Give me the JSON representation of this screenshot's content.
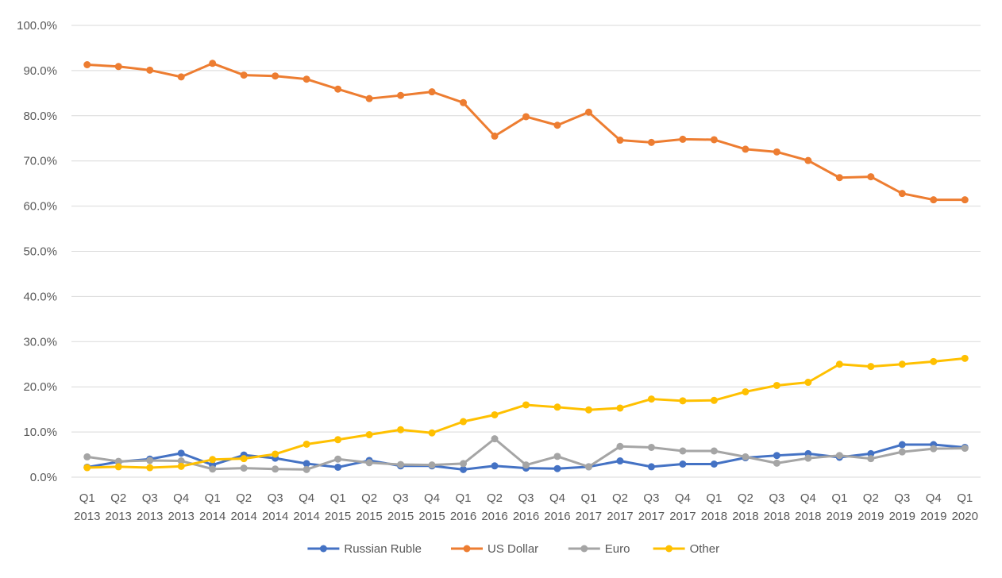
{
  "chart_data": {
    "type": "line",
    "title": "",
    "xlabel": "",
    "ylabel": "",
    "ylim": [
      0,
      100
    ],
    "y_ticks": [
      "0.0%",
      "10.0%",
      "20.0%",
      "30.0%",
      "40.0%",
      "50.0%",
      "60.0%",
      "70.0%",
      "80.0%",
      "90.0%",
      "100.0%"
    ],
    "categories": [
      [
        "Q1",
        "2013"
      ],
      [
        "Q2",
        "2013"
      ],
      [
        "Q3",
        "2013"
      ],
      [
        "Q4",
        "2013"
      ],
      [
        "Q1",
        "2014"
      ],
      [
        "Q2",
        "2014"
      ],
      [
        "Q3",
        "2014"
      ],
      [
        "Q4",
        "2014"
      ],
      [
        "Q1",
        "2015"
      ],
      [
        "Q2",
        "2015"
      ],
      [
        "Q3",
        "2015"
      ],
      [
        "Q4",
        "2015"
      ],
      [
        "Q1",
        "2016"
      ],
      [
        "Q2",
        "2016"
      ],
      [
        "Q3",
        "2016"
      ],
      [
        "Q4",
        "2016"
      ],
      [
        "Q1",
        "2017"
      ],
      [
        "Q2",
        "2017"
      ],
      [
        "Q3",
        "2017"
      ],
      [
        "Q4",
        "2017"
      ],
      [
        "Q1",
        "2018"
      ],
      [
        "Q2",
        "2018"
      ],
      [
        "Q3",
        "2018"
      ],
      [
        "Q4",
        "2018"
      ],
      [
        "Q1",
        "2019"
      ],
      [
        "Q2",
        "2019"
      ],
      [
        "Q3",
        "2019"
      ],
      [
        "Q4",
        "2019"
      ],
      [
        "Q1",
        "2020"
      ]
    ],
    "legend_position": "bottom",
    "gridlines": true,
    "series": [
      {
        "name": "Russian Ruble",
        "color": "#4472C4",
        "values": [
          2.2,
          3.4,
          4.0,
          5.3,
          2.7,
          4.9,
          4.2,
          3.0,
          2.2,
          3.7,
          2.5,
          2.5,
          1.7,
          2.5,
          2.0,
          1.9,
          2.3,
          3.6,
          2.3,
          2.9,
          2.9,
          4.3,
          4.8,
          5.2,
          4.4,
          5.2,
          7.2,
          7.2,
          6.6
        ]
      },
      {
        "name": "US Dollar",
        "color": "#ED7D31",
        "values": [
          91.3,
          90.9,
          90.1,
          88.6,
          91.6,
          89.0,
          88.8,
          88.1,
          85.9,
          83.8,
          84.5,
          85.3,
          82.9,
          75.5,
          79.8,
          77.9,
          80.8,
          74.6,
          74.1,
          74.8,
          74.7,
          72.6,
          72.0,
          70.1,
          66.3,
          66.5,
          62.8,
          61.4,
          61.4
        ]
      },
      {
        "name": "Euro",
        "color": "#A5A5A5",
        "values": [
          4.5,
          3.5,
          3.7,
          3.6,
          1.8,
          2.0,
          1.8,
          1.7,
          4.0,
          3.2,
          2.8,
          2.7,
          3.0,
          8.5,
          2.7,
          4.6,
          2.3,
          6.8,
          6.6,
          5.8,
          5.8,
          4.5,
          3.1,
          4.2,
          4.8,
          4.1,
          5.6,
          6.3,
          6.4
        ]
      },
      {
        "name": "Other",
        "color": "#FFC000",
        "values": [
          2.1,
          2.3,
          2.1,
          2.4,
          3.9,
          4.1,
          5.1,
          7.3,
          8.3,
          9.4,
          10.5,
          9.8,
          12.3,
          13.8,
          16.0,
          15.5,
          14.9,
          15.3,
          17.3,
          16.9,
          17.0,
          18.9,
          20.3,
          21.0,
          25.0,
          24.5,
          25.0,
          25.6,
          26.3
        ]
      }
    ]
  }
}
